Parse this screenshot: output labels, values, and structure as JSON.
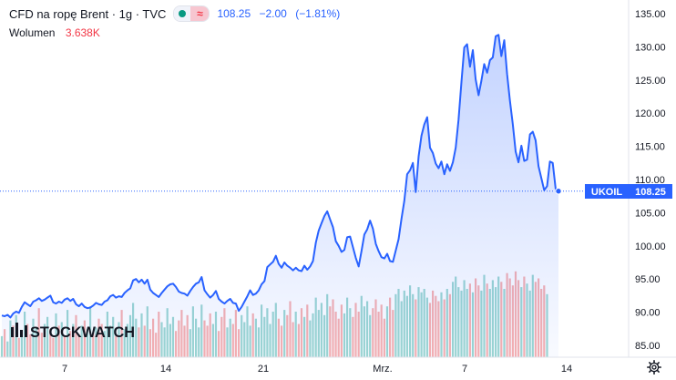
{
  "header": {
    "title": "CFD na ropę Brent · 1g · TVC",
    "last": "108.25",
    "change": "−2.00",
    "change_pct": "(−1.81%)"
  },
  "volume": {
    "label": "Wolumen",
    "value": "3.638K"
  },
  "watermark": {
    "text": "STOCKWATCH"
  },
  "price_label": {
    "symbol": "UKOIL",
    "value": "108.25"
  },
  "colors": {
    "line": "#2962ff",
    "area": "#2962ff",
    "up_volume": "#26a69a",
    "down_volume": "#ef5350",
    "down_text": "#f23645"
  },
  "chart_data": {
    "type": "line",
    "title": "CFD na ropę Brent · 1g · TVC",
    "xlabel": "",
    "ylabel": "",
    "ylim": [
      84,
      136
    ],
    "x_ticks": [
      "7",
      "14",
      "21",
      "Mrz.",
      "7",
      "14"
    ],
    "y_ticks": [
      "85.00",
      "90.00",
      "95.00",
      "100.00",
      "105.00",
      "110.00",
      "115.00",
      "120.00",
      "125.00",
      "130.00",
      "135.00"
    ],
    "grid": false,
    "series": [
      {
        "values": [
          89.5,
          89.4,
          89.6,
          89.2,
          89.8,
          90.1,
          89.9,
          90.8,
          91.5,
          91.2,
          90.9,
          91.6,
          91.8,
          92.1,
          91.7,
          91.9,
          92.2,
          92.5,
          91.5,
          91.3,
          91.6,
          91.4,
          91.9,
          92.1,
          91.7,
          92.0,
          91.2,
          90.9,
          91.3,
          90.8,
          90.6,
          90.7,
          91.0,
          91.4,
          91.2,
          91.1,
          91.6,
          91.8,
          92.4,
          92.6,
          92.2,
          92.4,
          92.3,
          92.9,
          93.3,
          93.6,
          94.8,
          95.0,
          94.5,
          94.9,
          94.3,
          94.9,
          93.4,
          92.9,
          92.6,
          92.3,
          92.9,
          93.4,
          93.9,
          94.2,
          94.3,
          93.8,
          93.1,
          92.9,
          92.8,
          92.5,
          93.2,
          93.8,
          94.3,
          94.5,
          95.3,
          93.3,
          92.7,
          92.2,
          92.6,
          93.2,
          92.0,
          91.6,
          91.3,
          91.7,
          92.0,
          91.4,
          91.3,
          90.2,
          90.8,
          91.6,
          92.4,
          93.3,
          92.6,
          92.8,
          93.3,
          94.2,
          94.7,
          96.8,
          97.2,
          97.6,
          98.5,
          97.3,
          96.7,
          97.5,
          97.0,
          96.7,
          96.3,
          96.7,
          96.3,
          96.2,
          97.0,
          96.4,
          96.9,
          97.7,
          100.5,
          102.3,
          103.4,
          104.5,
          105.2,
          104.0,
          102.8,
          100.7,
          100.0,
          99.1,
          99.4,
          101.3,
          101.4,
          99.8,
          98.2,
          96.9,
          99.2,
          101.7,
          102.5,
          103.8,
          102.6,
          100.3,
          99.2,
          98.3,
          98.1,
          98.8,
          97.7,
          97.6,
          99.3,
          101.0,
          104.1,
          106.8,
          110.8,
          111.4,
          112.5,
          108.1,
          113.5,
          116.6,
          118.3,
          119.4,
          114.8,
          114.0,
          112.4,
          111.7,
          112.7,
          110.8,
          112.3,
          111.3,
          112.6,
          114.8,
          119.0,
          124.7,
          129.9,
          130.4,
          127.0,
          129.5,
          125.1,
          122.7,
          124.9,
          127.4,
          126.1,
          128.0,
          128.4,
          131.6,
          131.8,
          128.6,
          131.0,
          125.9,
          121.9,
          118.3,
          114.2,
          112.6,
          115.1,
          112.8,
          113.0,
          116.8,
          117.2,
          115.9,
          112.0,
          110.2,
          108.4,
          109.0,
          112.7,
          112.5,
          108.6,
          108.25
        ]
      }
    ],
    "volume": [
      1.2,
      1.6,
      0.9,
      2.1,
      1.8,
      2.4,
      1.1,
      1.5,
      2.6,
      1.9,
      1.3,
      2.2,
      1.7,
      2.8,
      1.4,
      1.9,
      2.3,
      1.6,
      1.1,
      2.5,
      1.8,
      2.0,
      1.2,
      2.7,
      1.5,
      1.9,
      2.4,
      1.3,
      1.8,
      2.1,
      1.6,
      2.9,
      1.4,
      1.7,
      2.2,
      1.9,
      1.5,
      2.6,
      1.8,
      2.3,
      1.2,
      2.0,
      2.7,
      1.6,
      1.9,
      2.4,
      3.1,
      2.2,
      1.7,
      2.5,
      1.8,
      2.9,
      1.6,
      2.2,
      1.4,
      2.6,
      2.0,
      1.7,
      2.8,
      1.9,
      2.3,
      1.5,
      2.1,
      2.7,
      1.8,
      2.4,
      1.6,
      2.9,
      2.2,
      1.7,
      3.0,
      2.1,
      1.8,
      2.5,
      1.9,
      2.6,
      1.5,
      2.3,
      2.8,
      1.7,
      2.2,
      1.9,
      2.7,
      1.6,
      2.4,
      2.0,
      2.9,
      1.8,
      2.5,
      2.2,
      1.7,
      3.0,
      2.3,
      2.8,
      1.9,
      2.6,
      3.1,
      2.2,
      1.8,
      2.7,
      2.4,
      3.2,
      2.0,
      2.6,
      1.9,
      2.8,
      2.3,
      3.0,
      2.1,
      2.5,
      3.4,
      2.7,
      3.1,
      2.4,
      3.6,
      2.9,
      3.3,
      2.6,
      2.2,
      3.0,
      2.5,
      3.4,
      2.8,
      2.3,
      3.1,
      2.6,
      3.5,
      2.9,
      3.2,
      2.4,
      2.8,
      3.3,
      2.6,
      3.0,
      2.2,
      2.9,
      3.4,
      2.7,
      3.6,
      3.9,
      3.2,
      3.8,
      3.5,
      4.1,
      3.6,
      3.3,
      4.0,
      3.7,
      3.9,
      3.4,
      3.1,
      3.8,
      3.5,
      3.2,
      3.7,
      3.3,
      3.9,
      3.6,
      4.3,
      4.6,
      4.0,
      3.8,
      4.4,
      3.9,
      4.2,
      3.7,
      4.5,
      4.1,
      3.8,
      4.7,
      4.2,
      3.9,
      4.4,
      4.0,
      4.6,
      4.3,
      3.9,
      4.8,
      4.5,
      4.1,
      4.9,
      4.4,
      4.0,
      4.6,
      4.2,
      3.8,
      4.7,
      4.3,
      4.5,
      3.9,
      4.1,
      3.6
    ],
    "volume_up": [
      1,
      0,
      1,
      1,
      0,
      1,
      0,
      1,
      1,
      0,
      0,
      1,
      1,
      0,
      0,
      1,
      1,
      0,
      0,
      1,
      0,
      1,
      0,
      1,
      0,
      1,
      0,
      0,
      1,
      0,
      1,
      1,
      0,
      1,
      0,
      0,
      1,
      1,
      1,
      1,
      0,
      1,
      0,
      1,
      1,
      1,
      1,
      1,
      0,
      1,
      0,
      1,
      0,
      0,
      0,
      0,
      1,
      1,
      1,
      1,
      1,
      0,
      0,
      0,
      0,
      0,
      1,
      1,
      1,
      1,
      1,
      0,
      0,
      0,
      1,
      1,
      0,
      0,
      0,
      1,
      1,
      0,
      0,
      0,
      1,
      1,
      1,
      1,
      0,
      1,
      1,
      1,
      1,
      1,
      1,
      1,
      1,
      0,
      0,
      1,
      0,
      0,
      0,
      1,
      0,
      0,
      1,
      0,
      1,
      1,
      1,
      1,
      1,
      1,
      1,
      0,
      0,
      0,
      0,
      0,
      1,
      1,
      1,
      0,
      0,
      0,
      1,
      1,
      1,
      1,
      0,
      0,
      0,
      0,
      0,
      1,
      0,
      0,
      1,
      1,
      1,
      1,
      1,
      1,
      1,
      0,
      1,
      1,
      1,
      1,
      0,
      0,
      0,
      0,
      1,
      0,
      1,
      0,
      1,
      1,
      1,
      1,
      1,
      1,
      0,
      1,
      0,
      0,
      1,
      1,
      0,
      1,
      1,
      1,
      1,
      0,
      1,
      0,
      0,
      0,
      0,
      0,
      1,
      0,
      1,
      1,
      1,
      0,
      0,
      0,
      0,
      1,
      1,
      0,
      0,
      0
    ]
  }
}
